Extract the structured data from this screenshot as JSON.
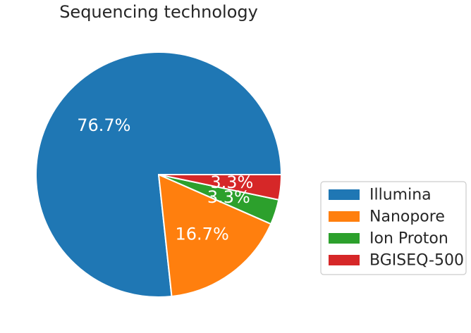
{
  "chart_data": {
    "type": "pie",
    "title": "Sequencing technology",
    "categories": [
      "Illumina",
      "Nanopore",
      "Ion Proton",
      "BGISEQ-500"
    ],
    "values": [
      76.7,
      16.7,
      3.3,
      3.3
    ],
    "labels": [
      "76.7%",
      "16.7%",
      "3.3%",
      "3.3%"
    ],
    "colors": [
      "#1f77b4",
      "#ff7f0e",
      "#2ca02c",
      "#d62728"
    ],
    "start_angle_deg": 0,
    "direction": "counterclockwise",
    "legend_position": "lower-right"
  }
}
